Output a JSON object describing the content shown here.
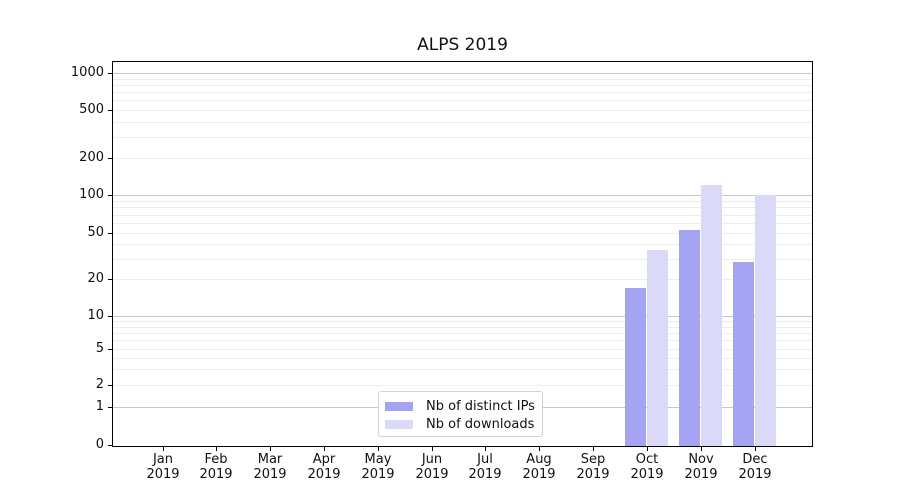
{
  "chart_data": {
    "type": "bar",
    "title": "ALPS 2019",
    "months": [
      "Jan",
      "Feb",
      "Mar",
      "Apr",
      "May",
      "Jun",
      "Jul",
      "Aug",
      "Sep",
      "Oct",
      "Nov",
      "Dec"
    ],
    "year": "2019",
    "categories": [
      "Jan 2019",
      "Feb 2019",
      "Mar 2019",
      "Apr 2019",
      "May 2019",
      "Jun 2019",
      "Jul 2019",
      "Aug 2019",
      "Sep 2019",
      "Oct 2019",
      "Nov 2019",
      "Dec 2019"
    ],
    "series": [
      {
        "name": "Nb of distinct IPs",
        "color": "#a4a4f2",
        "values": [
          0,
          0,
          0,
          0,
          0,
          0,
          0,
          0,
          0,
          17,
          53,
          28
        ]
      },
      {
        "name": "Nb of downloads",
        "color": "#dadaf8",
        "values": [
          0,
          0,
          0,
          0,
          0,
          0,
          0,
          0,
          0,
          36,
          120,
          100
        ]
      }
    ],
    "y_ticks": [
      0,
      1,
      2,
      5,
      10,
      20,
      50,
      100,
      200,
      500,
      1000
    ],
    "yscale": "symlog",
    "ylim": [
      0,
      1250
    ],
    "xlabel": "",
    "ylabel": "",
    "grid": "horizontal major+minor",
    "legend_position": "lower center",
    "colors": {
      "major_grid": "#c7c7c7",
      "minor_grid": "#ededed",
      "spine": "#000000",
      "background": "#ffffff"
    }
  }
}
